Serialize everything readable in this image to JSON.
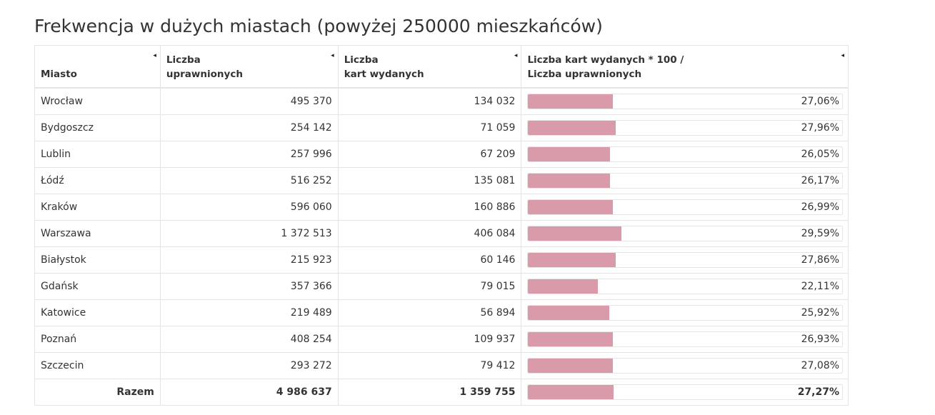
{
  "title": "Frekwencja w dużych miastach (powyżej 250000 mieszkańców)",
  "headers": {
    "city": "Miasto",
    "eligible_line1": "Liczba",
    "eligible_line2": "uprawnionych",
    "cards_line1": "Liczba",
    "cards_line2": "kart wydanych",
    "ratio_line1": "Liczba kart wydanych * 100 /",
    "ratio_line2": "Liczba uprawnionych",
    "sort_icon": "◂"
  },
  "bar_color": "#d99aaa",
  "bar_scale_max": 100,
  "rows": [
    {
      "city": "Wrocław",
      "eligible": "495 370",
      "cards": "134 032",
      "pct_label": "27,06%",
      "pct": 27.06
    },
    {
      "city": "Bydgoszcz",
      "eligible": "254 142",
      "cards": "71 059",
      "pct_label": "27,96%",
      "pct": 27.96
    },
    {
      "city": "Lublin",
      "eligible": "257 996",
      "cards": "67 209",
      "pct_label": "26,05%",
      "pct": 26.05
    },
    {
      "city": "Łódź",
      "eligible": "516 252",
      "cards": "135 081",
      "pct_label": "26,17%",
      "pct": 26.17
    },
    {
      "city": "Kraków",
      "eligible": "596 060",
      "cards": "160 886",
      "pct_label": "26,99%",
      "pct": 26.99
    },
    {
      "city": "Warszawa",
      "eligible": "1 372 513",
      "cards": "406 084",
      "pct_label": "29,59%",
      "pct": 29.59
    },
    {
      "city": "Białystok",
      "eligible": "215 923",
      "cards": "60 146",
      "pct_label": "27,86%",
      "pct": 27.86
    },
    {
      "city": "Gdańsk",
      "eligible": "357 366",
      "cards": "79 015",
      "pct_label": "22,11%",
      "pct": 22.11
    },
    {
      "city": "Katowice",
      "eligible": "219 489",
      "cards": "56 894",
      "pct_label": "25,92%",
      "pct": 25.92
    },
    {
      "city": "Poznań",
      "eligible": "408 254",
      "cards": "109 937",
      "pct_label": "26,93%",
      "pct": 26.93
    },
    {
      "city": "Szczecin",
      "eligible": "293 272",
      "cards": "79 412",
      "pct_label": "27,08%",
      "pct": 27.08
    }
  ],
  "total": {
    "city": "Razem",
    "eligible": "4 986 637",
    "cards": "1 359 755",
    "pct_label": "27,27%",
    "pct": 27.27
  }
}
